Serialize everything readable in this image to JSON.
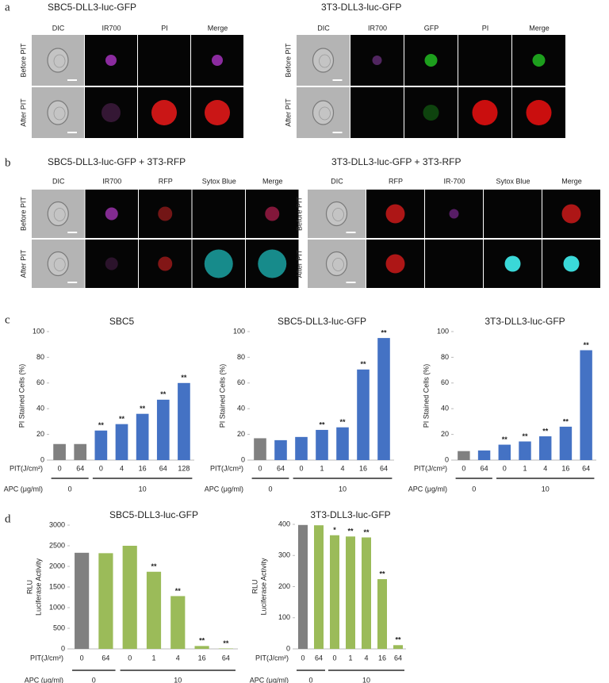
{
  "panel_letters": [
    "a",
    "b",
    "c",
    "d"
  ],
  "micrographs": [
    {
      "title": "SBC5-DLL3-luc-GFP",
      "columns": [
        "DIC",
        "IR700",
        "PI",
        "Merge"
      ],
      "rows": [
        "Before PIT",
        "After PIT"
      ]
    },
    {
      "title": "3T3-DLL3-luc-GFP",
      "columns": [
        "DIC",
        "IR700",
        "GFP",
        "PI",
        "Merge"
      ],
      "rows": [
        "Before PIT",
        "After PIT"
      ]
    },
    {
      "title": "SBC5-DLL3-luc-GFP + 3T3-RFP",
      "columns": [
        "DIC",
        "IR700",
        "RFP",
        "Sytox Blue",
        "Merge"
      ],
      "rows": [
        "Before PIT",
        "After PIT"
      ]
    },
    {
      "title": "3T3-DLL3-luc-GFP + 3T3-RFP",
      "columns": [
        "DIC",
        "RFP",
        "IR-700",
        "Sytox Blue",
        "Merge"
      ],
      "rows": [
        "Before PIT",
        "After PIT"
      ]
    }
  ],
  "chart_data": [
    {
      "type": "bar",
      "title": "SBC5",
      "ylabel": [
        "PI Stained Cells (%)"
      ],
      "row_labels": [
        "PIT(J/cm²)",
        "APC (μg/ml)"
      ],
      "ylim": [
        0,
        100
      ],
      "yticks": [
        0,
        20,
        40,
        60,
        80,
        100
      ],
      "groups": [
        {
          "label": "0",
          "categories": [
            "0",
            "64"
          ],
          "values": [
            12.5,
            12.5
          ],
          "colors": [
            "#808080",
            "#808080"
          ],
          "annotations": [
            null,
            null
          ]
        },
        {
          "label": "10",
          "categories": [
            "0",
            "4",
            "16",
            "64",
            "128"
          ],
          "values": [
            23,
            28,
            36,
            47,
            60
          ],
          "colors": [
            "#4472c4",
            "#4472c4",
            "#4472c4",
            "#4472c4",
            "#4472c4"
          ],
          "annotations": [
            "**",
            "**",
            "**",
            "**",
            "**"
          ]
        }
      ]
    },
    {
      "type": "bar",
      "title": "SBC5-DLL3-luc-GFP",
      "ylabel": [
        "PI Stained Cells (%)"
      ],
      "row_labels": [
        "PIT(J/cm²)",
        "APC (μg/ml)"
      ],
      "ylim": [
        0,
        100
      ],
      "yticks": [
        0,
        20,
        40,
        60,
        80,
        100
      ],
      "groups": [
        {
          "label": "0",
          "categories": [
            "0",
            "64"
          ],
          "values": [
            17,
            15.5
          ],
          "colors": [
            "#808080",
            "#4472c4"
          ],
          "annotations": [
            null,
            null
          ]
        },
        {
          "label": "10",
          "categories": [
            "0",
            "1",
            "4",
            "16",
            "64"
          ],
          "values": [
            18,
            23.5,
            25.5,
            70.5,
            95
          ],
          "colors": [
            "#4472c4",
            "#4472c4",
            "#4472c4",
            "#4472c4",
            "#4472c4"
          ],
          "annotations": [
            null,
            "**",
            "**",
            "**",
            "**"
          ]
        }
      ]
    },
    {
      "type": "bar",
      "title": "3T3-DLL3-luc-GFP",
      "ylabel": [
        "PI Stained Cells (%)"
      ],
      "row_labels": [
        "PIT(J/cm²)",
        "APC (μg/ml)"
      ],
      "ylim": [
        0,
        100
      ],
      "yticks": [
        0,
        20,
        40,
        60,
        80,
        100
      ],
      "groups": [
        {
          "label": "0",
          "categories": [
            "0",
            "64"
          ],
          "values": [
            7,
            7.5
          ],
          "colors": [
            "#808080",
            "#4472c4"
          ],
          "annotations": [
            null,
            null
          ]
        },
        {
          "label": "10",
          "categories": [
            "0",
            "1",
            "4",
            "16",
            "64"
          ],
          "values": [
            12,
            14.5,
            18.5,
            26,
            85.5
          ],
          "colors": [
            "#4472c4",
            "#4472c4",
            "#4472c4",
            "#4472c4",
            "#4472c4"
          ],
          "annotations": [
            "**",
            "**",
            "**",
            "**",
            "**"
          ]
        }
      ]
    },
    {
      "type": "bar",
      "title": "SBC5-DLL3-luc-GFP",
      "ylabel": [
        "Luciferase Activity",
        "RLU"
      ],
      "row_labels": [
        "PIT(J/cm²)",
        "APC (μg/ml)"
      ],
      "ylim": [
        0,
        3000
      ],
      "yticks": [
        0,
        500,
        1000,
        1500,
        2000,
        2500,
        3000
      ],
      "groups": [
        {
          "label": "0",
          "categories": [
            "0",
            "64"
          ],
          "values": [
            2330,
            2320
          ],
          "colors": [
            "#808080",
            "#9bbb59"
          ],
          "annotations": [
            null,
            null
          ]
        },
        {
          "label": "10",
          "categories": [
            "0",
            "1",
            "4",
            "16",
            "64"
          ],
          "values": [
            2500,
            1870,
            1280,
            70,
            10
          ],
          "colors": [
            "#9bbb59",
            "#9bbb59",
            "#9bbb59",
            "#9bbb59",
            "#9bbb59"
          ],
          "annotations": [
            null,
            "**",
            "**",
            "**",
            "**"
          ]
        }
      ]
    },
    {
      "type": "bar",
      "title": "3T3-DLL3-luc-GFP",
      "ylabel": [
        "Luciferase Activity",
        "RLU"
      ],
      "row_labels": [
        "PIT(J/cm²)",
        "APC (μg/ml)"
      ],
      "ylim": [
        0,
        400
      ],
      "yticks": [
        0,
        100,
        200,
        300,
        400
      ],
      "groups": [
        {
          "label": "0",
          "categories": [
            "0",
            "64"
          ],
          "values": [
            398,
            397
          ],
          "colors": [
            "#808080",
            "#9bbb59"
          ],
          "annotations": [
            null,
            null
          ]
        },
        {
          "label": "10",
          "categories": [
            "0",
            "1",
            "4",
            "16",
            "64"
          ],
          "values": [
            365,
            361,
            358,
            224,
            12
          ],
          "colors": [
            "#9bbb59",
            "#9bbb59",
            "#9bbb59",
            "#9bbb59",
            "#9bbb59"
          ],
          "annotations": [
            "*",
            "**",
            "**",
            "**",
            "**"
          ]
        }
      ]
    }
  ]
}
